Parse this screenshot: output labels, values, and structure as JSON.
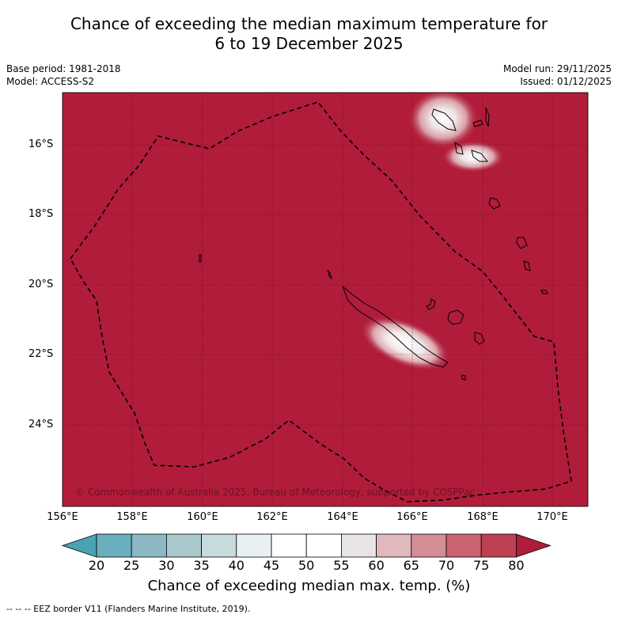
{
  "title": {
    "line1": "Chance of exceeding the median maximum temperature for",
    "line2": "6 to 19 December 2025"
  },
  "meta": {
    "base_period": "Base period: 1981-2018",
    "model": "Model: ACCESS-S2",
    "model_run": "Model run: 29/11/2025",
    "issued": "Issued: 01/12/2025"
  },
  "map": {
    "latitude_ticks": [
      "16°S",
      "18°S",
      "20°S",
      "22°S",
      "24°S"
    ],
    "longitude_ticks": [
      "156°E",
      "158°E",
      "160°E",
      "162°E",
      "164°E",
      "166°E",
      "168°E",
      "170°E"
    ],
    "copyright": "© Commonwealth of Australia 2025, Bureau of Meteorology, supported by COSPPac",
    "background_color": "#b11c3a"
  },
  "colorbar": {
    "labels": [
      "20",
      "25",
      "30",
      "35",
      "40",
      "45",
      "50",
      "55",
      "60",
      "65",
      "70",
      "75",
      "80"
    ],
    "colors": [
      "#4aa3b3",
      "#6aafbd",
      "#8db8c3",
      "#a9c8cc",
      "#c7dadc",
      "#e9f0f2",
      "#ffffff",
      "#ffffff",
      "#e8e4e5",
      "#e0b8bd",
      "#d48d95",
      "#c8636f",
      "#bd4152",
      "#b11c3a"
    ],
    "title": "Chance of exceeding median max. temp. (%)"
  },
  "footnote": "--  --  -- EEZ border V11 (Flanders Marine Institute, 2019)."
}
